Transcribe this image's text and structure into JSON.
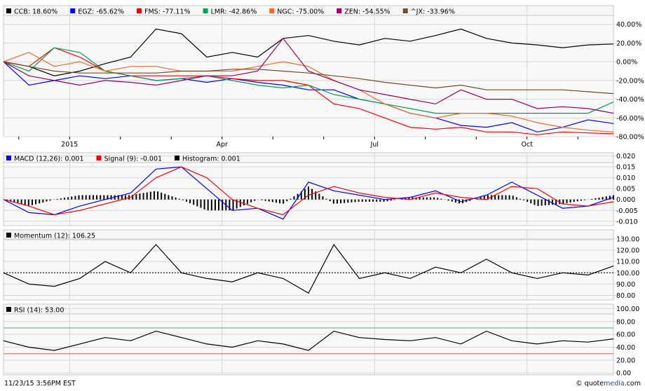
{
  "chart_data": [
    {
      "type": "line",
      "panel": "comparison",
      "x_ticks": [
        "2015",
        "Apr",
        "Jul",
        "Oct"
      ],
      "x_tick_months": [
        1.3,
        4.3,
        7.3,
        10.3
      ],
      "x": [
        0,
        0.5,
        1,
        1.5,
        2,
        2.5,
        3,
        3.5,
        4,
        4.5,
        5,
        5.5,
        6,
        6.5,
        7,
        7.5,
        8,
        8.5,
        9,
        9.5,
        10,
        10.5,
        11,
        11.5,
        12
      ],
      "ylim": [
        -80,
        60
      ],
      "y_ticks": [
        40,
        20,
        0,
        -20,
        -40,
        -60,
        -80
      ],
      "y_tick_labels": [
        "40.00%",
        "20.00%",
        "0.00%",
        "-20.00%",
        "-40.00%",
        "-60.00%",
        "-80.00%"
      ],
      "grid": true,
      "legend_placement": "top",
      "series": [
        {
          "name": "CCB",
          "legend": "CCB: 18.60%",
          "color": "#000000",
          "values": [
            0,
            -5,
            -15,
            -10,
            -2,
            5,
            35,
            30,
            5,
            10,
            5,
            25,
            28,
            22,
            18,
            25,
            22,
            28,
            35,
            25,
            20,
            18,
            15,
            18,
            19
          ]
        },
        {
          "name": "EGZ",
          "legend": "EGZ: -65.62%",
          "color": "#0000ff",
          "values": [
            0,
            -25,
            -20,
            -15,
            -18,
            -15,
            -20,
            -18,
            -22,
            -18,
            -22,
            -25,
            -30,
            -30,
            -40,
            -45,
            -55,
            -60,
            -68,
            -70,
            -65,
            -75,
            -70,
            -62,
            -66
          ]
        },
        {
          "name": "FMS",
          "legend": "FMS: -77.11%",
          "color": "#ff0000",
          "values": [
            0,
            -5,
            15,
            5,
            -10,
            -15,
            -15,
            -15,
            -15,
            -18,
            -20,
            -20,
            -25,
            -45,
            -50,
            -60,
            -70,
            -72,
            -70,
            -75,
            -75,
            -78,
            -75,
            -76,
            -77
          ]
        },
        {
          "name": "LMR",
          "legend": "LMR: -42.86%",
          "color": "#00a050",
          "values": [
            0,
            -10,
            15,
            10,
            -10,
            -15,
            -20,
            -18,
            -15,
            -20,
            -25,
            -28,
            -25,
            -35,
            -40,
            -45,
            -50,
            -55,
            -55,
            -55,
            -55,
            -55,
            -55,
            -55,
            -43
          ]
        },
        {
          "name": "NGC",
          "legend": "NGC: -75.00%",
          "color": "#f06a28",
          "values": [
            0,
            10,
            -5,
            0,
            -10,
            -5,
            -5,
            -10,
            -10,
            -10,
            -5,
            0,
            -5,
            -20,
            -30,
            -45,
            -55,
            -60,
            -55,
            -55,
            -58,
            -65,
            -70,
            -73,
            -75
          ]
        },
        {
          "name": "ZEN",
          "legend": "ZEN: -54.55%",
          "color": "#9c0060",
          "values": [
            0,
            -15,
            -20,
            -25,
            -20,
            -22,
            -25,
            -20,
            -15,
            -15,
            -10,
            25,
            -10,
            -20,
            -30,
            -35,
            -40,
            -45,
            -30,
            -40,
            -40,
            -50,
            -48,
            -50,
            -55
          ]
        },
        {
          "name": "^JX",
          "legend": "^JX: -33.96%",
          "color": "#7a4a22",
          "values": [
            0,
            -5,
            -10,
            -12,
            -12,
            -12,
            -12,
            -10,
            -10,
            -8,
            -8,
            -10,
            -12,
            -15,
            -18,
            -22,
            -25,
            -28,
            -25,
            -30,
            -30,
            -30,
            -30,
            -32,
            -34
          ]
        }
      ]
    },
    {
      "type": "line",
      "panel": "macd",
      "ylim": [
        -0.012,
        0.0215
      ],
      "y_ticks": [
        0.02,
        0.015,
        0.01,
        0.005,
        0,
        -0.005,
        -0.01
      ],
      "y_tick_labels": [
        "0.020",
        "0.015",
        "0.010",
        "0.005",
        "0.000",
        "-0.005",
        "-0.010"
      ],
      "series": [
        {
          "name": "MACD",
          "legend": "MACD (12,26): 0.001",
          "color": "#0000ff",
          "values": [
            0,
            -0.006,
            -0.007,
            -0.003,
            0,
            0.003,
            0.014,
            0.015,
            0.005,
            -0.005,
            -0.004,
            -0.009,
            0.008,
            0.004,
            0.002,
            0,
            0.001,
            0.004,
            -0.001,
            0.002,
            0.008,
            0.002,
            -0.004,
            -0.003,
            0.001
          ]
        },
        {
          "name": "Signal",
          "legend": "Signal (9): -0.001",
          "color": "#ff0000",
          "values": [
            0,
            -0.003,
            -0.007,
            -0.005,
            -0.002,
            0.001,
            0.01,
            0.015,
            0.01,
            0,
            -0.004,
            -0.007,
            0.002,
            0.006,
            0.003,
            0.001,
            0,
            0.003,
            0.001,
            0,
            0.006,
            0.005,
            -0.002,
            -0.003,
            -0.001
          ]
        },
        {
          "name": "Histogram",
          "legend": "Histogram: 0.001",
          "color": "#000000",
          "type": "bar"
        }
      ]
    },
    {
      "type": "line",
      "panel": "momentum",
      "ylim": [
        76,
        138
      ],
      "y_ticks": [
        130,
        120,
        110,
        100,
        90,
        80
      ],
      "y_tick_labels": [
        "130.00",
        "120.00",
        "110.00",
        "100.00",
        "90.00",
        "80.00"
      ],
      "reference": 100,
      "series": [
        {
          "name": "Momentum",
          "legend": "Momentum (12): 106.25",
          "color": "#000000",
          "values": [
            100,
            90,
            88,
            95,
            110,
            100,
            125,
            100,
            95,
            92,
            100,
            95,
            82,
            125,
            95,
            100,
            95,
            105,
            100,
            112,
            100,
            95,
            100,
            98,
            106
          ]
        }
      ]
    },
    {
      "type": "line",
      "panel": "rsi",
      "ylim": [
        -3,
        107
      ],
      "y_ticks": [
        100,
        80,
        60,
        40,
        20,
        0
      ],
      "y_tick_labels": [
        "100.00",
        "80.00",
        "60.00",
        "40.00",
        "20.00",
        "0.00"
      ],
      "overbought": 70,
      "oversold": 30,
      "overbought_color": "#4caf6a",
      "oversold_color": "#e06060",
      "series": [
        {
          "name": "RSI",
          "legend": "RSI (14): 53.00",
          "color": "#000000",
          "values": [
            50,
            40,
            35,
            45,
            55,
            50,
            65,
            55,
            45,
            40,
            50,
            45,
            35,
            65,
            55,
            52,
            50,
            55,
            45,
            65,
            50,
            45,
            50,
            48,
            53
          ]
        }
      ]
    }
  ],
  "footer": {
    "timestamp": "11/23/15 3:56PM EST",
    "copyright_prefix": "© quote",
    "copyright_brand": "media",
    "copyright_suffix": ".com",
    "brand_color": "#1f4fa0"
  }
}
